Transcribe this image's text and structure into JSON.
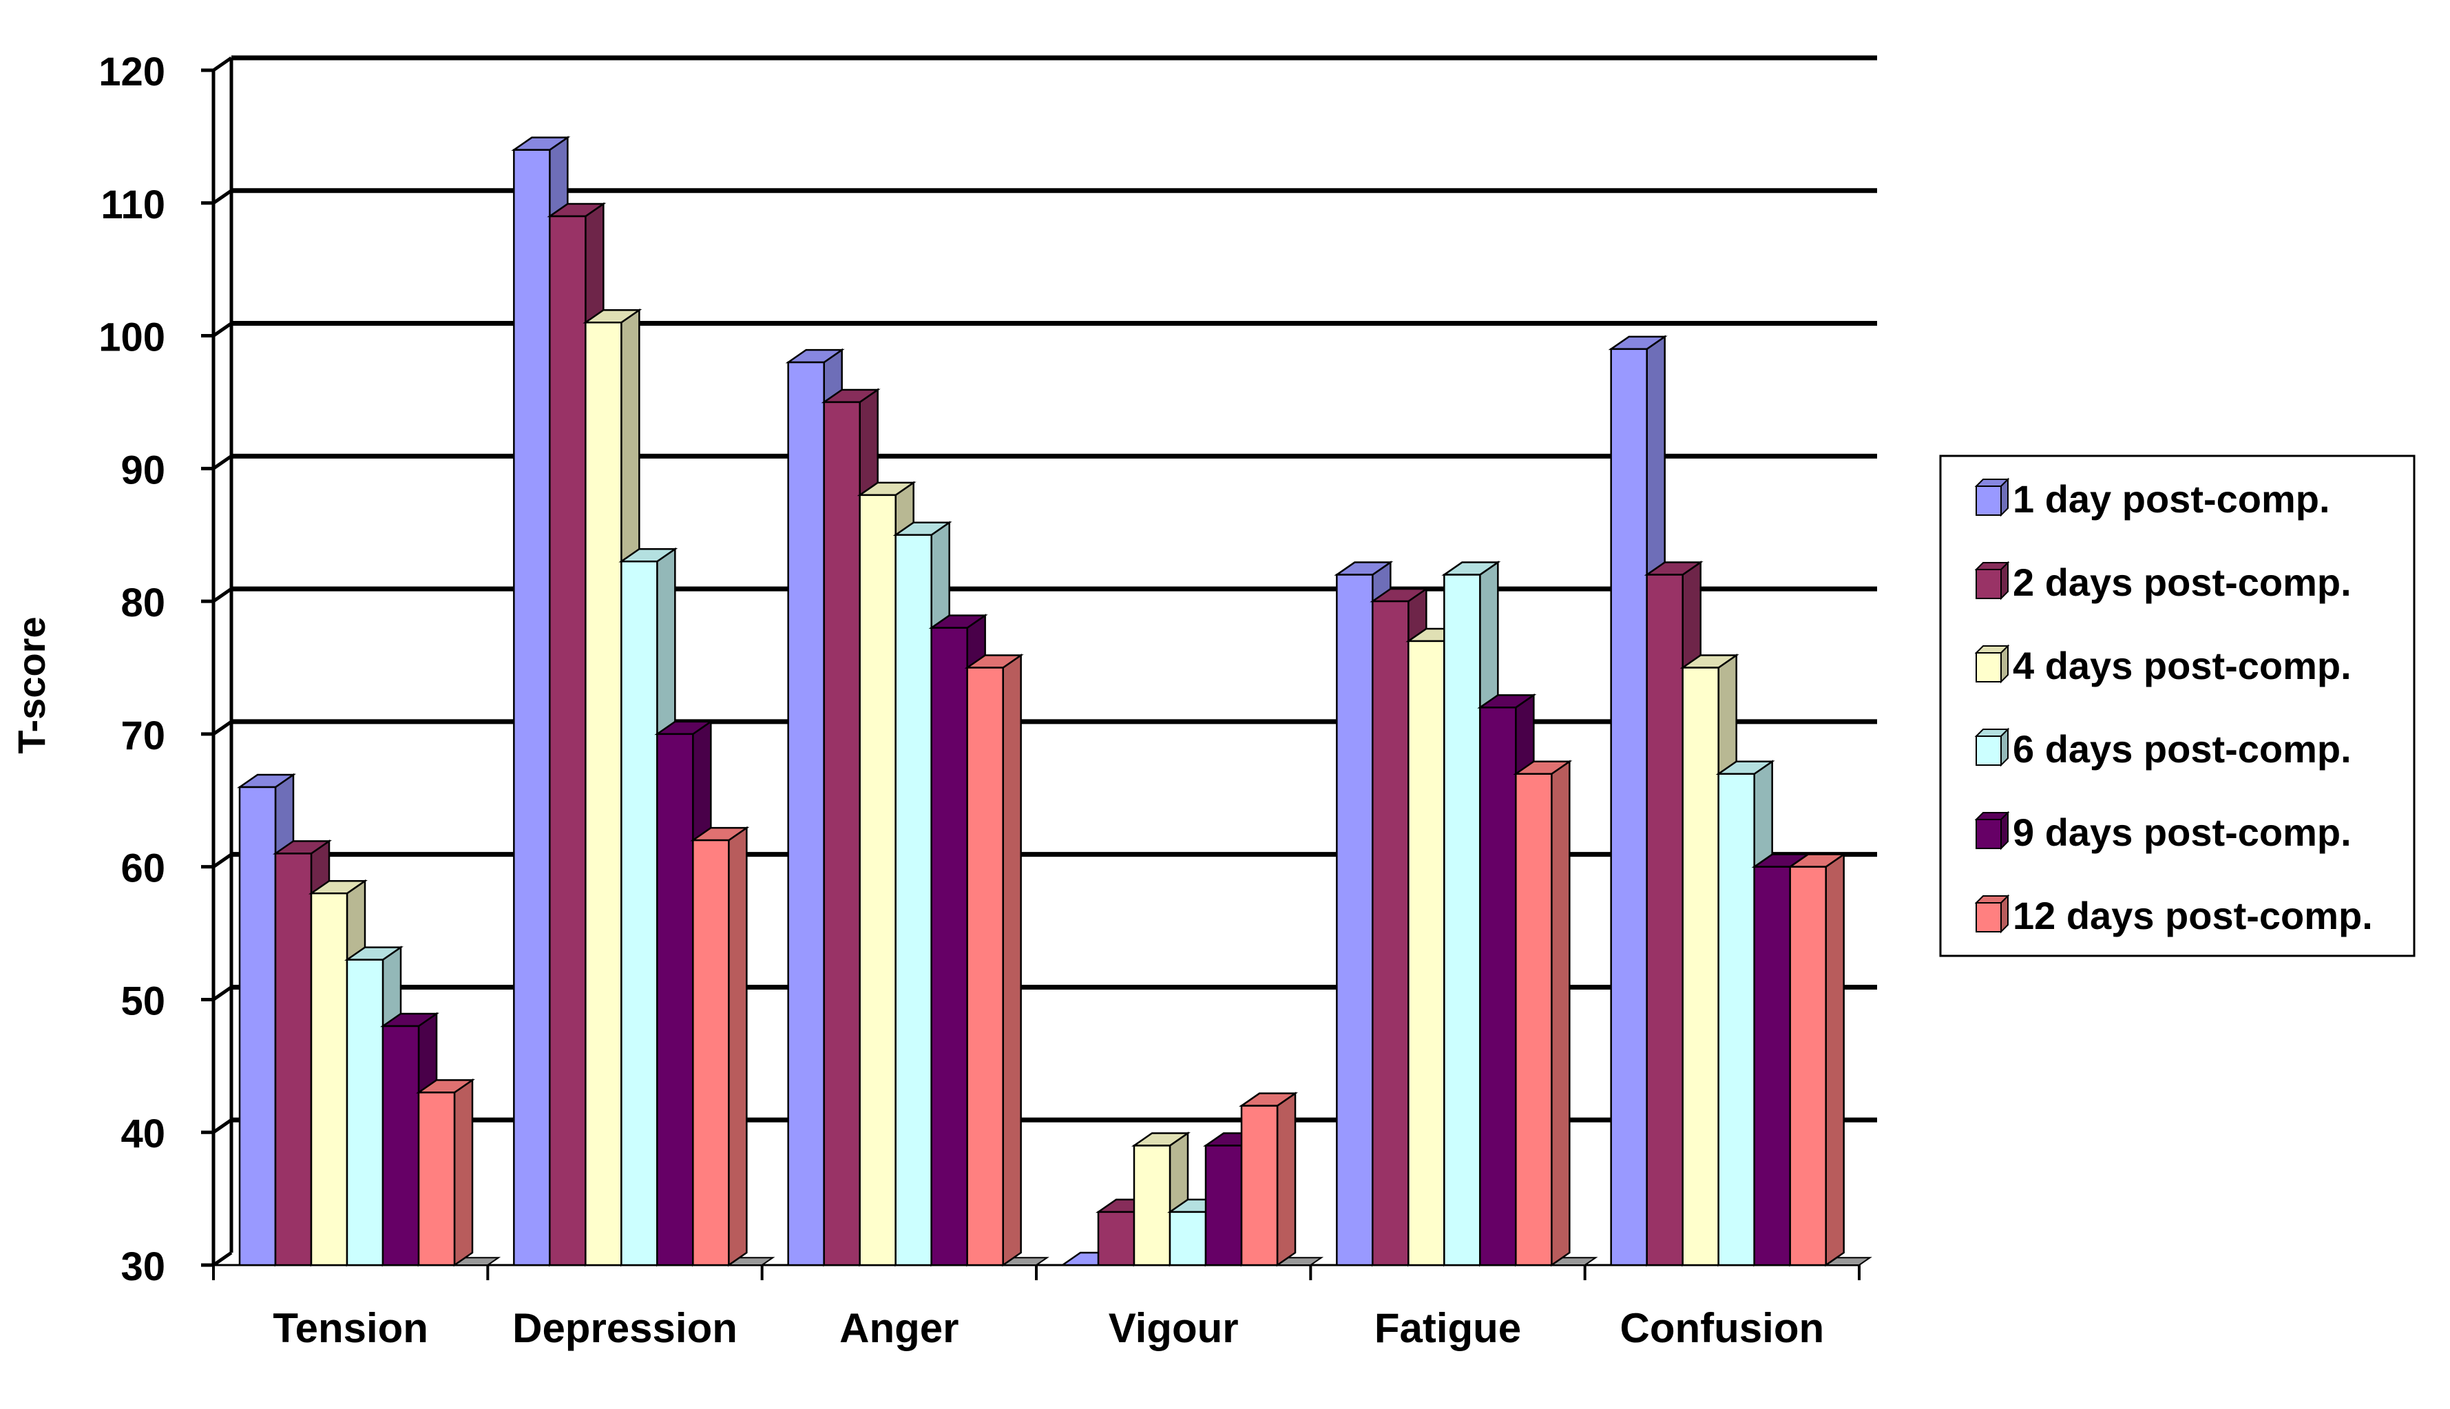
{
  "chart_data": {
    "type": "bar",
    "title": "",
    "xlabel": "",
    "ylabel": "T-score",
    "ylim": [
      30,
      120
    ],
    "yticks": [
      "30",
      "40",
      "50",
      "60",
      "70",
      "80",
      "90",
      "100",
      "110",
      "120"
    ],
    "grid": true,
    "legend_position": "right",
    "categories": [
      "Tension",
      "Depression",
      "Anger",
      "Vigour",
      "Fatigue",
      "Confusion"
    ],
    "series": [
      {
        "name": "1 day post-comp.",
        "color": "#9999ff",
        "values": [
          66,
          114,
          98,
          30,
          82,
          99
        ]
      },
      {
        "name": "2 days post-comp.",
        "color": "#993366",
        "values": [
          61,
          109,
          95,
          34,
          80,
          82
        ]
      },
      {
        "name": "4 days post-comp.",
        "color": "#ffffcc",
        "values": [
          58,
          101,
          88,
          39,
          77,
          75
        ]
      },
      {
        "name": "6 days post-comp.",
        "color": "#ccffff",
        "values": [
          53,
          83,
          85,
          34,
          82,
          67
        ]
      },
      {
        "name": "9 days post-comp.",
        "color": "#660066",
        "values": [
          48,
          70,
          78,
          39,
          72,
          60
        ]
      },
      {
        "name": "12 days post-comp.",
        "color": "#ff8080",
        "values": [
          43,
          62,
          75,
          42,
          67,
          60
        ]
      }
    ]
  }
}
